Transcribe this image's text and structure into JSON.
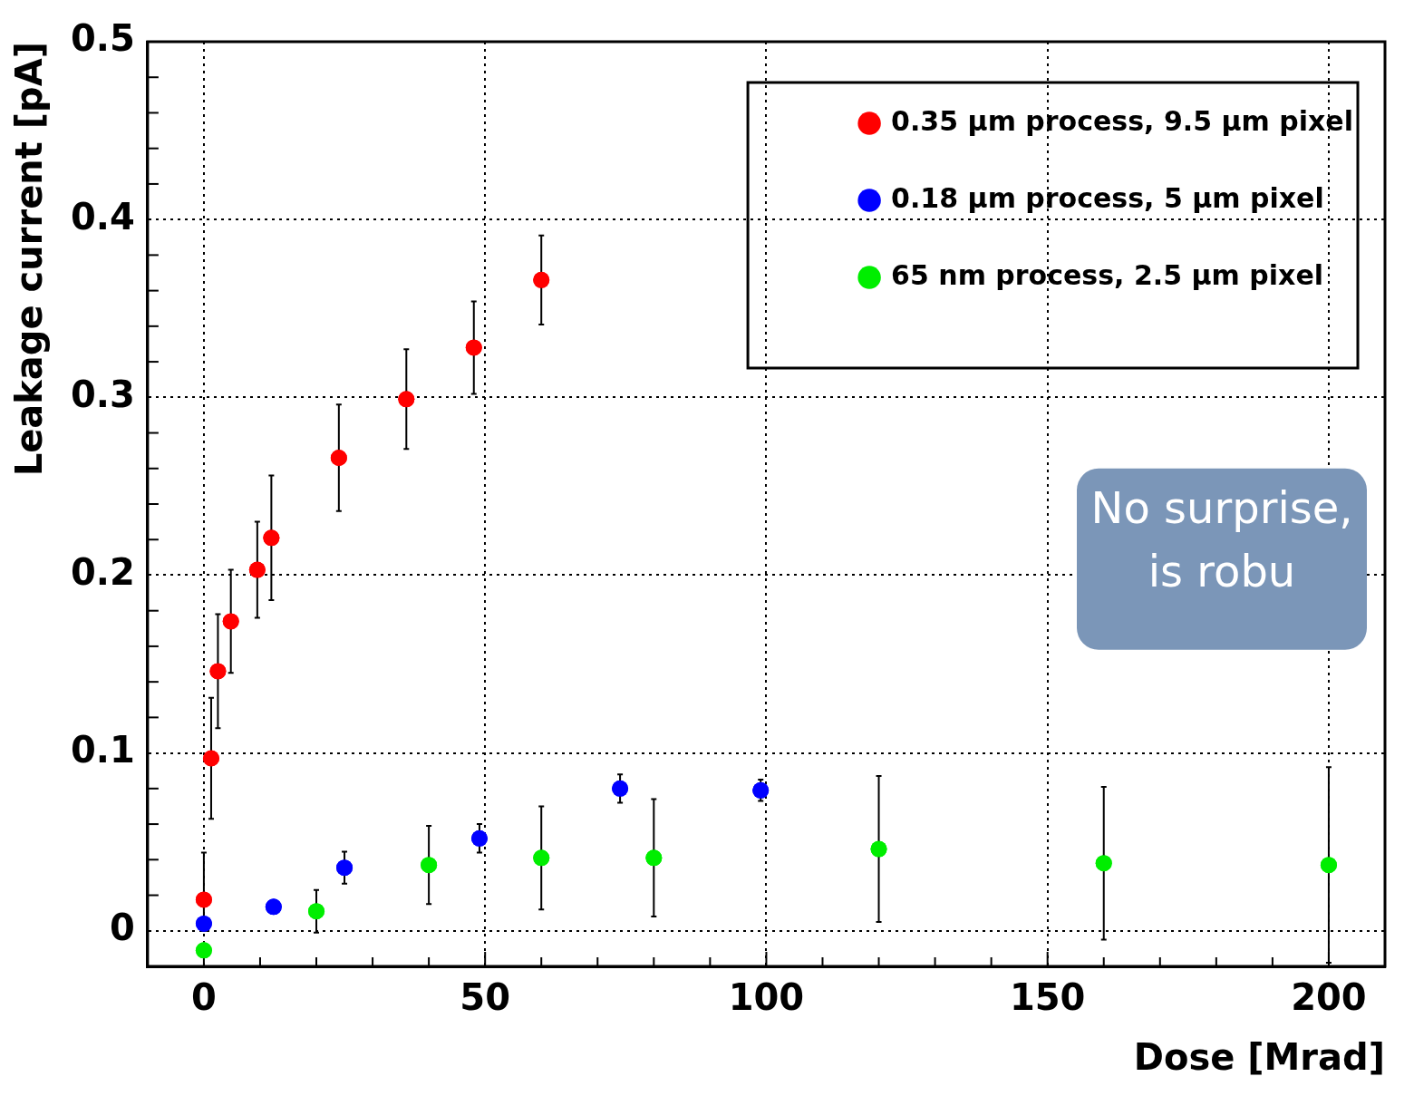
{
  "chart_data": {
    "type": "scatter",
    "xlabel": "Dose [Mrad]",
    "ylabel": "Leakage current [pA]",
    "xlim": [
      -10,
      210
    ],
    "ylim": [
      -0.02,
      0.5
    ],
    "xticks": [
      0,
      {
        "value": 10,
        "label": null
      },
      {
        "value": 20,
        "label": null
      },
      {
        "value": 30,
        "label": null
      },
      {
        "value": 40,
        "label": null
      },
      50,
      {
        "value": 60,
        "label": null
      },
      {
        "value": 70,
        "label": null
      },
      {
        "value": 80,
        "label": null
      },
      {
        "value": 90,
        "label": null
      },
      100,
      {
        "value": 110,
        "label": null
      },
      {
        "value": 120,
        "label": null
      },
      {
        "value": 130,
        "label": null
      },
      {
        "value": 140,
        "label": null
      },
      150,
      {
        "value": 160,
        "label": null
      },
      {
        "value": 170,
        "label": null
      },
      {
        "value": 180,
        "label": null
      },
      {
        "value": 190,
        "label": null
      },
      200
    ],
    "yticks": [
      0,
      {
        "value": 0.02,
        "label": null
      },
      {
        "value": 0.04,
        "label": null
      },
      {
        "value": 0.06,
        "label": null
      },
      {
        "value": 0.08,
        "label": null
      },
      0.1,
      {
        "value": 0.12,
        "label": null
      },
      {
        "value": 0.14,
        "label": null
      },
      {
        "value": 0.16,
        "label": null
      },
      {
        "value": 0.18,
        "label": null
      },
      0.2,
      {
        "value": 0.22,
        "label": null
      },
      {
        "value": 0.24,
        "label": null
      },
      {
        "value": 0.26,
        "label": null
      },
      {
        "value": 0.28,
        "label": null
      },
      0.3,
      {
        "value": 0.32,
        "label": null
      },
      {
        "value": 0.34,
        "label": null
      },
      {
        "value": 0.36,
        "label": null
      },
      {
        "value": 0.38,
        "label": null
      },
      0.4,
      {
        "value": 0.42,
        "label": null
      },
      {
        "value": 0.44,
        "label": null
      },
      {
        "value": 0.46,
        "label": null
      },
      {
        "value": 0.48,
        "label": null
      },
      0.5
    ],
    "grid": true,
    "legend": "top right",
    "marker": "circle",
    "series": [
      {
        "name": "0.35 µm process, 9.5 µm pixel",
        "color": "#ff0000",
        "x": [
          0,
          1.3,
          2.5,
          4.8,
          9.5,
          12,
          24,
          36,
          48,
          60
        ],
        "values": [
          0.0175,
          0.097,
          0.146,
          0.174,
          0.203,
          0.221,
          0.266,
          0.299,
          0.328,
          0.366
        ],
        "errors": [
          [
            0,
            0.044
          ],
          0.034,
          0.032,
          0.029,
          0.027,
          0.035,
          0.03,
          0.028,
          0.026,
          0.025
        ]
      },
      {
        "name": "0.18 µm process, 5 µm pixel",
        "color": "#0000ff",
        "x": [
          0,
          12.4,
          25,
          49,
          74,
          99
        ],
        "values": [
          0.004,
          0.0135,
          0.0355,
          0.052,
          0.08,
          0.079
        ],
        "errors": [
          null,
          null,
          0.009,
          0.008,
          0.008,
          0.006
        ]
      },
      {
        "name": "65 nm process, 2.5 µm pixel",
        "color": "#00ee00",
        "x": [
          0,
          20,
          40,
          60,
          80,
          120,
          160,
          200
        ],
        "values": [
          -0.011,
          0.011,
          0.037,
          0.041,
          0.041,
          0.046,
          0.038,
          0.037
        ],
        "errors": [
          null,
          0.012,
          0.022,
          0.029,
          0.033,
          0.041,
          0.043,
          0.055
        ]
      }
    ],
    "annotations": [
      "No surprise,",
      "is robu"
    ]
  }
}
